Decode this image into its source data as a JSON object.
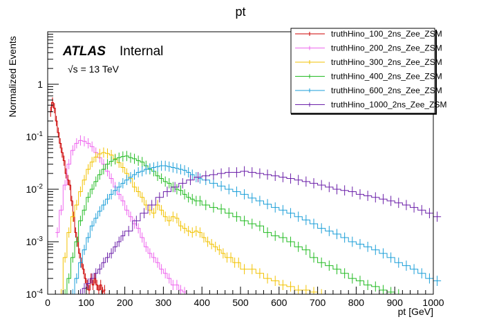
{
  "chart_data": {
    "type": "line",
    "title": "pt",
    "xlabel": "pt [GeV]",
    "ylabel": "Normalized Events",
    "x_range": [
      0,
      1000
    ],
    "y_range": [
      0.0001,
      10
    ],
    "y_scale": "log",
    "x_ticks": [
      {
        "v": 0,
        "label": "0"
      },
      {
        "v": 100,
        "label": "100"
      },
      {
        "v": 200,
        "label": "200"
      },
      {
        "v": 300,
        "label": "300"
      },
      {
        "v": 400,
        "label": "400"
      },
      {
        "v": 500,
        "label": "500"
      },
      {
        "v": 600,
        "label": "600"
      },
      {
        "v": 700,
        "label": "700"
      },
      {
        "v": 800,
        "label": "800"
      },
      {
        "v": 900,
        "label": "900"
      },
      {
        "v": 1000,
        "label": "1000"
      }
    ],
    "y_ticks": [
      {
        "v": 1,
        "label": "1"
      },
      {
        "v": 0.1,
        "label": "10^-1"
      },
      {
        "v": 0.01,
        "label": "10^-2"
      },
      {
        "v": 0.001,
        "label": "10^-3"
      },
      {
        "v": 0.0001,
        "label": "10^-4"
      }
    ],
    "atlas_label": "ATLAS",
    "internal_label": "Internal",
    "energy_label": "√s = 13 TeV",
    "legend_position": "top-right",
    "series": [
      {
        "name": "truthHino_100_2ns_Zee_ZSM",
        "color": "#cc0000",
        "x": [
          5,
          10,
          15,
          20,
          25,
          30,
          35,
          40,
          45,
          50,
          55,
          60,
          65,
          70,
          75,
          80,
          85,
          90,
          95,
          100,
          105,
          110,
          115,
          120,
          125,
          130,
          135,
          140,
          145
        ],
        "y": [
          0.3,
          0.45,
          0.35,
          0.2,
          0.12,
          0.075,
          0.05,
          0.035,
          0.02,
          0.015,
          0.012,
          0.006,
          0.003,
          0.0015,
          0.001,
          0.0006,
          0.0004,
          0.0003,
          0.0002,
          0.00015,
          0.00012,
          0.0002,
          0.00015,
          0.0002,
          0.00015,
          0.00012,
          0.00015,
          0.00011,
          0.00012
        ]
      },
      {
        "name": "truthHino_200_2ns_Zee_ZSM",
        "color": "#ee66ee",
        "x": [
          20,
          30,
          40,
          50,
          60,
          70,
          80,
          90,
          100,
          110,
          120,
          130,
          140,
          150,
          160,
          170,
          180,
          190,
          200,
          210,
          220,
          230,
          240,
          250,
          260,
          270,
          280,
          290,
          300,
          310,
          320,
          330,
          340,
          350
        ],
        "y": [
          0.0015,
          0.004,
          0.012,
          0.03,
          0.055,
          0.075,
          0.085,
          0.082,
          0.075,
          0.065,
          0.05,
          0.04,
          0.03,
          0.022,
          0.016,
          0.011,
          0.008,
          0.006,
          0.004,
          0.003,
          0.0022,
          0.0018,
          0.0012,
          0.0008,
          0.0006,
          0.0005,
          0.0004,
          0.0003,
          0.00025,
          0.0002,
          0.00015,
          0.00015,
          0.00012,
          0.00011
        ]
      },
      {
        "name": "truthHino_300_2ns_Zee_ZSM",
        "color": "#f2c200",
        "x": [
          30,
          40,
          50,
          60,
          70,
          80,
          90,
          100,
          110,
          120,
          130,
          140,
          150,
          160,
          170,
          180,
          190,
          200,
          210,
          220,
          230,
          240,
          250,
          260,
          270,
          280,
          290,
          300,
          310,
          320,
          330,
          340,
          350,
          360,
          370,
          380,
          390,
          400,
          410,
          420,
          430,
          440,
          450,
          460,
          470,
          480,
          490,
          500,
          520,
          540,
          560,
          580,
          600,
          620,
          640,
          660,
          680,
          700
        ],
        "y": [
          0.0001,
          0.0005,
          0.0015,
          0.003,
          0.005,
          0.009,
          0.015,
          0.024,
          0.033,
          0.041,
          0.047,
          0.05,
          0.048,
          0.045,
          0.038,
          0.032,
          0.026,
          0.02,
          0.016,
          0.011,
          0.009,
          0.007,
          0.005,
          0.004,
          0.0035,
          0.005,
          0.004,
          0.003,
          0.0025,
          0.003,
          0.0028,
          0.002,
          0.0018,
          0.0016,
          0.0015,
          0.0016,
          0.0015,
          0.0012,
          0.001,
          0.0009,
          0.0008,
          0.0007,
          0.0006,
          0.0005,
          0.0005,
          0.0004,
          0.0004,
          0.0003,
          0.0003,
          0.00025,
          0.0002,
          0.00018,
          0.00015,
          0.00014,
          0.00012,
          0.00012,
          0.00011,
          0.0001
        ]
      },
      {
        "name": "truthHino_400_2ns_Zee_ZSM",
        "color": "#22bb22",
        "x": [
          40,
          50,
          60,
          70,
          80,
          90,
          100,
          110,
          120,
          130,
          140,
          150,
          160,
          170,
          180,
          190,
          200,
          210,
          220,
          230,
          240,
          250,
          260,
          270,
          280,
          290,
          300,
          310,
          320,
          330,
          340,
          350,
          360,
          370,
          380,
          390,
          400,
          420,
          440,
          460,
          480,
          500,
          520,
          540,
          560,
          580,
          600,
          620,
          640,
          660,
          680,
          700,
          720,
          740,
          760,
          780,
          800,
          820,
          840,
          860,
          880,
          900
        ],
        "y": [
          0.0001,
          0.0002,
          0.0005,
          0.001,
          0.0025,
          0.004,
          0.007,
          0.01,
          0.014,
          0.019,
          0.024,
          0.03,
          0.034,
          0.037,
          0.04,
          0.042,
          0.043,
          0.04,
          0.038,
          0.035,
          0.033,
          0.028,
          0.024,
          0.022,
          0.018,
          0.016,
          0.014,
          0.013,
          0.011,
          0.01,
          0.0095,
          0.008,
          0.007,
          0.0065,
          0.006,
          0.006,
          0.005,
          0.0045,
          0.0042,
          0.0035,
          0.003,
          0.0025,
          0.0022,
          0.002,
          0.0015,
          0.0013,
          0.0012,
          0.001,
          0.0008,
          0.0007,
          0.0005,
          0.0004,
          0.00035,
          0.0003,
          0.00025,
          0.0002,
          0.00018,
          0.00015,
          0.00014,
          0.00012,
          0.00011,
          0.0001
        ]
      },
      {
        "name": "truthHino_600_2ns_Zee_ZSM",
        "color": "#1a9ed8",
        "x": [
          60,
          70,
          80,
          90,
          100,
          110,
          120,
          130,
          140,
          150,
          160,
          170,
          180,
          190,
          200,
          210,
          220,
          230,
          240,
          250,
          260,
          270,
          280,
          290,
          300,
          310,
          320,
          330,
          340,
          350,
          360,
          370,
          380,
          390,
          400,
          420,
          440,
          460,
          480,
          500,
          520,
          540,
          560,
          580,
          600,
          620,
          640,
          660,
          680,
          700,
          720,
          740,
          760,
          780,
          800,
          820,
          840,
          860,
          880,
          900,
          920,
          940,
          960,
          980,
          1000
        ],
        "y": [
          0.0001,
          0.0002,
          0.0004,
          0.0007,
          0.0012,
          0.002,
          0.0028,
          0.0038,
          0.005,
          0.0065,
          0.008,
          0.0095,
          0.011,
          0.013,
          0.015,
          0.017,
          0.019,
          0.021,
          0.022,
          0.024,
          0.025,
          0.026,
          0.027,
          0.028,
          0.028,
          0.027,
          0.026,
          0.025,
          0.024,
          0.023,
          0.021,
          0.019,
          0.017,
          0.016,
          0.015,
          0.013,
          0.0115,
          0.01,
          0.009,
          0.008,
          0.0068,
          0.006,
          0.0052,
          0.0045,
          0.004,
          0.0035,
          0.003,
          0.0026,
          0.0022,
          0.0018,
          0.0016,
          0.0014,
          0.0012,
          0.001,
          0.0009,
          0.0008,
          0.0007,
          0.0006,
          0.0005,
          0.0004,
          0.00035,
          0.0003,
          0.00025,
          0.0002,
          0.00018
        ]
      },
      {
        "name": "truthHino_1000_2ns_Zee_ZSM",
        "color": "#6a1ea8",
        "x": [
          80,
          90,
          100,
          110,
          120,
          130,
          140,
          150,
          160,
          170,
          180,
          190,
          200,
          220,
          240,
          260,
          280,
          300,
          320,
          340,
          360,
          380,
          400,
          420,
          440,
          460,
          480,
          500,
          520,
          540,
          560,
          580,
          600,
          620,
          640,
          660,
          680,
          700,
          720,
          740,
          760,
          780,
          800,
          820,
          840,
          860,
          880,
          900,
          920,
          940,
          960,
          980,
          1000
        ],
        "y": [
          0.0001,
          0.00013,
          0.00016,
          0.0002,
          0.00025,
          0.0003,
          0.0004,
          0.0005,
          0.0006,
          0.0008,
          0.001,
          0.0013,
          0.0016,
          0.0025,
          0.0035,
          0.005,
          0.007,
          0.009,
          0.011,
          0.013,
          0.015,
          0.017,
          0.018,
          0.019,
          0.02,
          0.021,
          0.021,
          0.022,
          0.021,
          0.02,
          0.019,
          0.018,
          0.017,
          0.016,
          0.015,
          0.014,
          0.013,
          0.012,
          0.011,
          0.01,
          0.0095,
          0.009,
          0.008,
          0.0075,
          0.007,
          0.0065,
          0.006,
          0.0055,
          0.005,
          0.0045,
          0.004,
          0.0035,
          0.003
        ]
      }
    ]
  }
}
